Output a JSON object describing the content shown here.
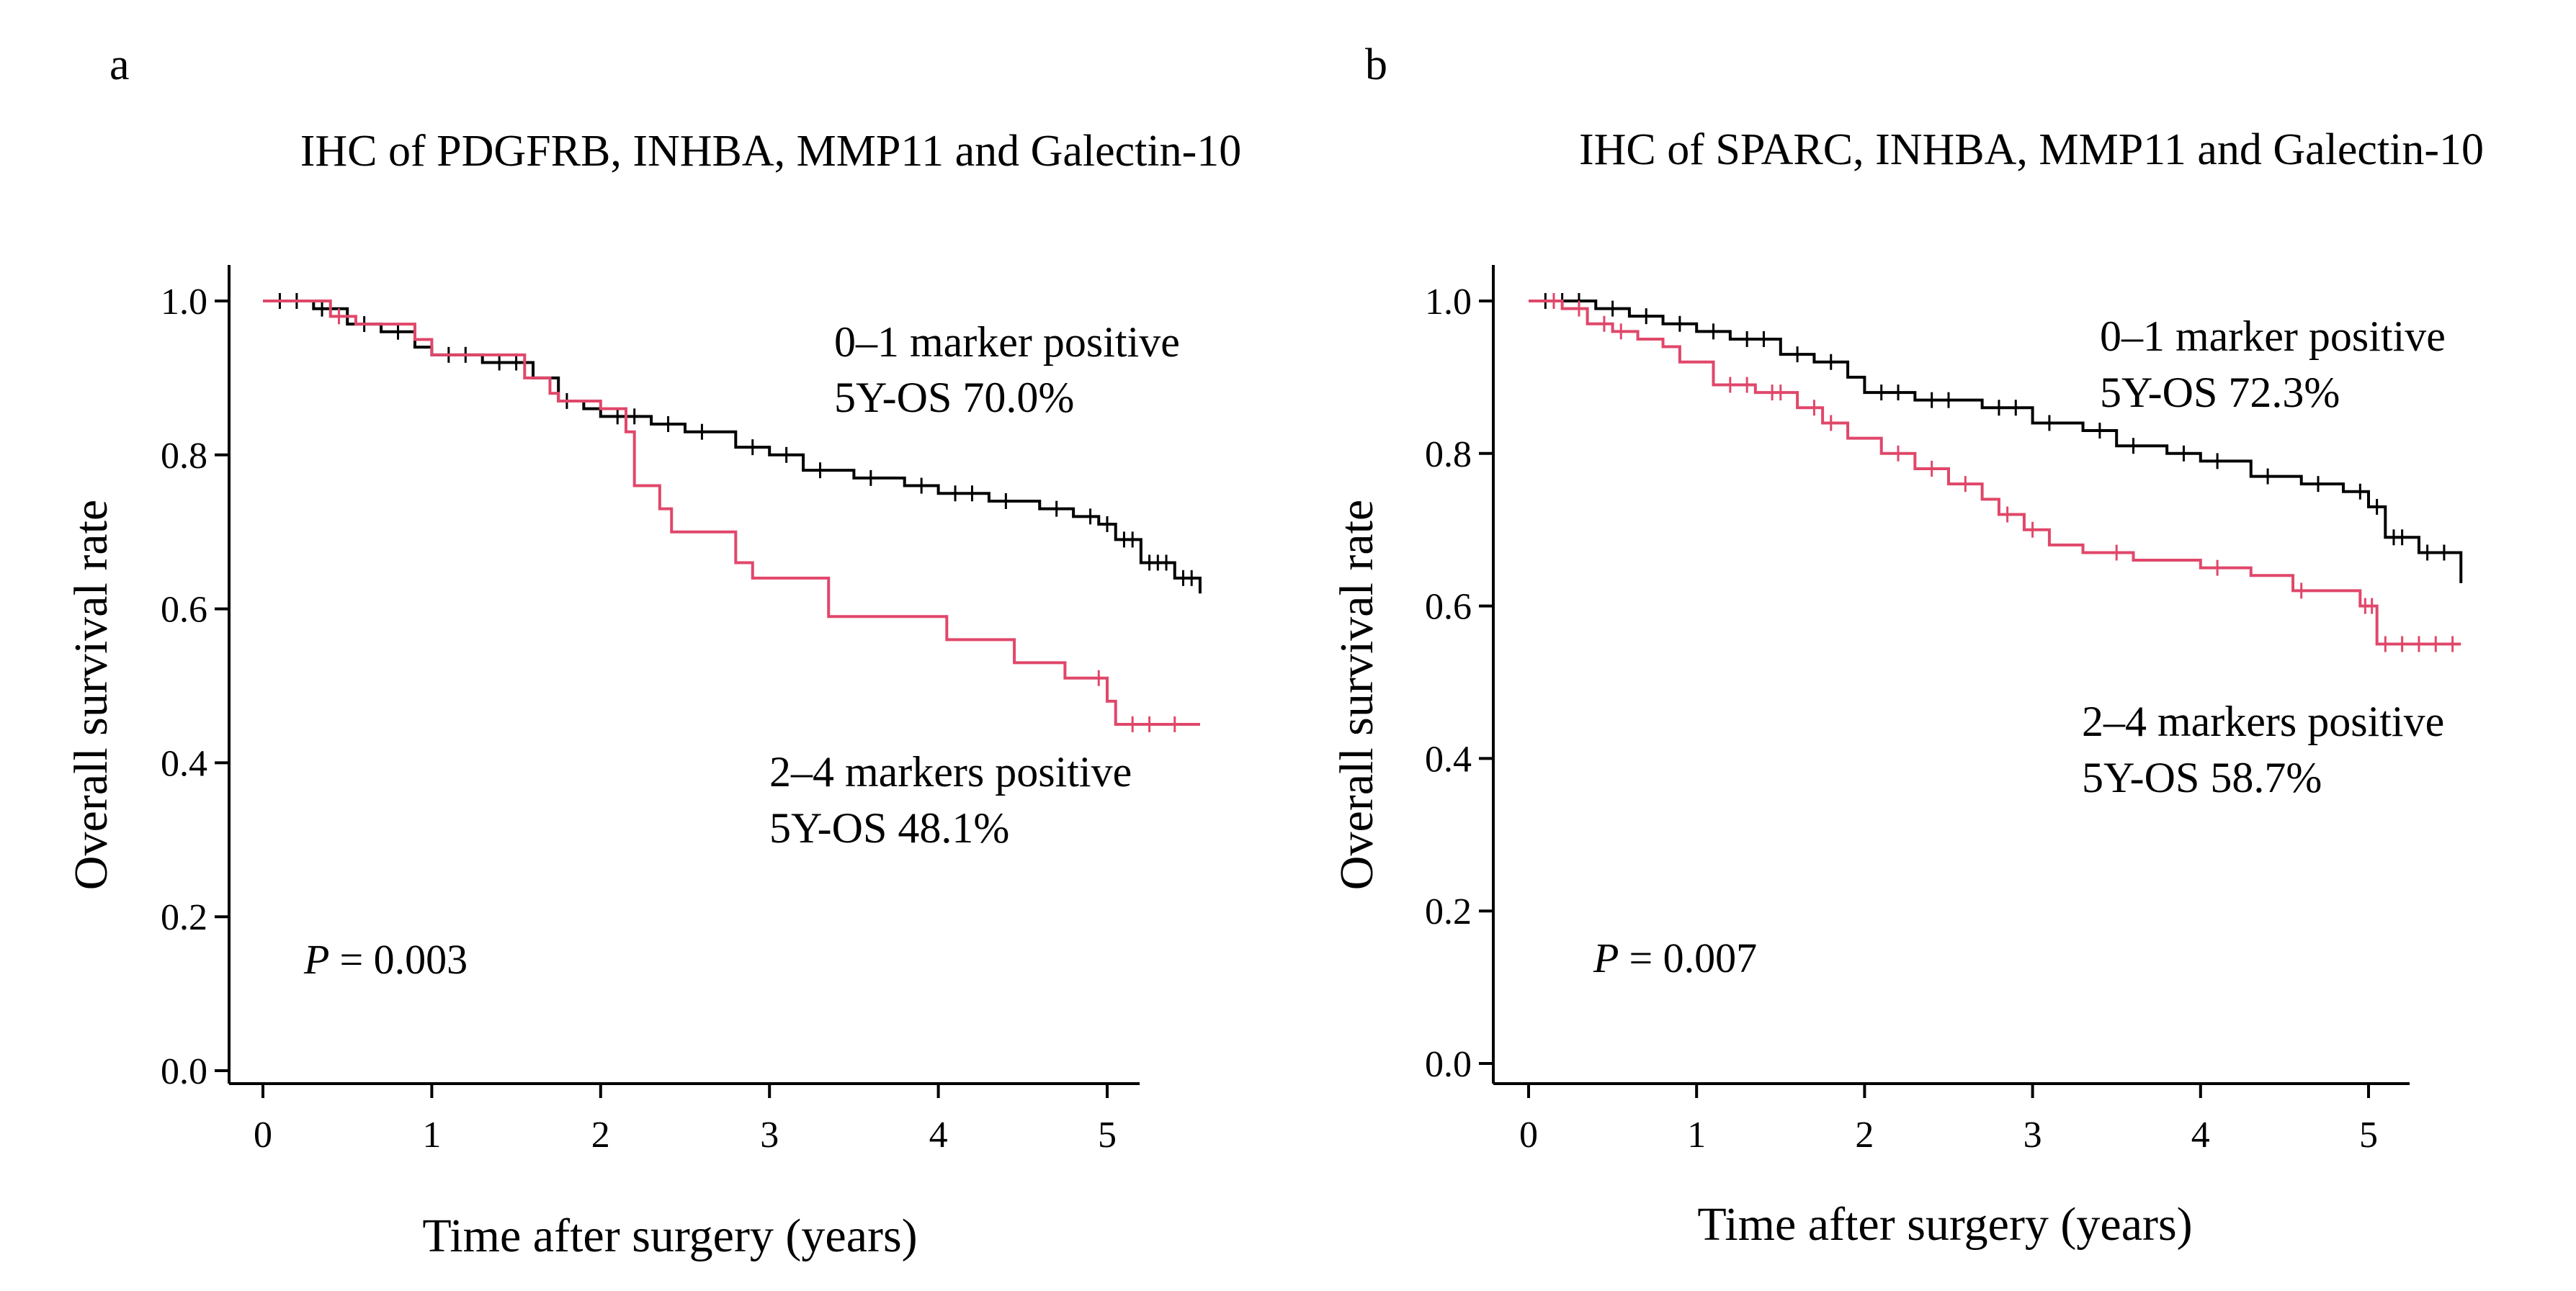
{
  "figure": {
    "panels": [
      {
        "letter": "a",
        "title": "IHC of PDGFRB, INHBA, MMP11 and Galectin-10",
        "p_label": "P",
        "p_value": "= 0.003"
      },
      {
        "letter": "b",
        "title": "IHC of SPARC, INHBA, MMP11 and Galectin-10",
        "p_label": "P",
        "p_value": "= 0.007"
      }
    ]
  },
  "chart_data": [
    {
      "type": "line",
      "subtype": "kaplan-meier",
      "title": "IHC of PDGFRB, INHBA, MMP11 and Galectin-10",
      "xlabel": "Time after surgery (years)",
      "ylabel": "Overall survival rate",
      "xlim": [
        -0.1,
        5.25
      ],
      "ylim": [
        0.0,
        1.05
      ],
      "x_ticks": [
        0,
        1,
        2,
        3,
        4,
        5
      ],
      "x_tick_labels": [
        "0",
        "1",
        "2",
        "3",
        "4",
        "5"
      ],
      "y_ticks": [
        0.0,
        0.2,
        0.4,
        0.6,
        0.8,
        1.0
      ],
      "y_tick_labels": [
        "0.0",
        "0.2",
        "0.4",
        "0.6",
        "0.8",
        "1.0"
      ],
      "grid": false,
      "series": [
        {
          "name": "0–1 marker positive",
          "annotation_line1": "0–1 marker positive",
          "annotation_line2": "5Y-OS 70.0%",
          "color": "#000000",
          "x": [
            0,
            0.3,
            0.5,
            0.7,
            0.9,
            1.0,
            1.3,
            1.6,
            1.75,
            1.9,
            2.0,
            2.3,
            2.5,
            2.8,
            3.0,
            3.2,
            3.5,
            3.8,
            4.0,
            4.3,
            4.6,
            4.8,
            4.95,
            5.05,
            5.2,
            5.4,
            5.55
          ],
          "y": [
            1.0,
            0.99,
            0.97,
            0.96,
            0.94,
            0.93,
            0.92,
            0.9,
            0.87,
            0.86,
            0.85,
            0.84,
            0.83,
            0.81,
            0.8,
            0.78,
            0.77,
            0.76,
            0.75,
            0.74,
            0.73,
            0.72,
            0.71,
            0.69,
            0.66,
            0.64,
            0.62
          ],
          "censor_x": [
            0.1,
            0.2,
            0.35,
            0.6,
            0.8,
            1.1,
            1.2,
            1.4,
            1.5,
            1.8,
            2.1,
            2.2,
            2.4,
            2.6,
            2.9,
            3.1,
            3.3,
            3.6,
            3.9,
            4.1,
            4.2,
            4.4,
            4.7,
            4.9,
            5.0,
            5.1,
            5.15,
            5.25,
            5.3,
            5.35,
            5.45,
            5.5
          ]
        },
        {
          "name": "2–4 markers positive",
          "annotation_line1": "2–4 markers  positive",
          "annotation_line2": "5Y-OS 48.1%",
          "color": "#e0476a",
          "x": [
            0,
            0.4,
            0.55,
            0.9,
            1.0,
            1.55,
            1.7,
            1.75,
            2.0,
            2.15,
            2.2,
            2.35,
            2.42,
            2.8,
            2.9,
            3.35,
            4.05,
            4.45,
            4.75,
            5.0,
            5.05,
            5.55
          ],
          "y": [
            1.0,
            0.98,
            0.97,
            0.95,
            0.93,
            0.9,
            0.88,
            0.87,
            0.86,
            0.83,
            0.76,
            0.73,
            0.7,
            0.66,
            0.64,
            0.59,
            0.56,
            0.53,
            0.51,
            0.48,
            0.45,
            0.45
          ],
          "censor_x": [
            0.45,
            4.95,
            5.15,
            5.25,
            5.4
          ]
        }
      ],
      "p_value": "P = 0.003"
    },
    {
      "type": "line",
      "subtype": "kaplan-meier",
      "title": "IHC of SPARC, INHBA, MMP11 and Galectin-10",
      "xlabel": "Time after surgery (years)",
      "ylabel": "Overall survival rate",
      "xlim": [
        -0.1,
        5.25
      ],
      "ylim": [
        0.0,
        1.05
      ],
      "x_ticks": [
        0,
        1,
        2,
        3,
        4,
        5
      ],
      "x_tick_labels": [
        "0",
        "1",
        "2",
        "3",
        "4",
        "5"
      ],
      "y_ticks": [
        0.0,
        0.2,
        0.4,
        0.6,
        0.8,
        1.0
      ],
      "y_tick_labels": [
        "0.0",
        "0.2",
        "0.4",
        "0.6",
        "0.8",
        "1.0"
      ],
      "grid": false,
      "series": [
        {
          "name": "0–1 marker positive",
          "annotation_line1": "0–1 marker positive",
          "annotation_line2": "5Y-OS 72.3%",
          "color": "#000000",
          "x": [
            0,
            0.4,
            0.6,
            0.8,
            1.0,
            1.2,
            1.5,
            1.7,
            1.9,
            2.0,
            2.3,
            2.7,
            3.0,
            3.3,
            3.5,
            3.8,
            4.0,
            4.3,
            4.6,
            4.85,
            5.0,
            5.1,
            5.3,
            5.55
          ],
          "y": [
            1.0,
            0.99,
            0.98,
            0.97,
            0.96,
            0.95,
            0.93,
            0.92,
            0.9,
            0.88,
            0.87,
            0.86,
            0.84,
            0.83,
            0.81,
            0.8,
            0.79,
            0.77,
            0.76,
            0.75,
            0.73,
            0.69,
            0.67,
            0.63
          ],
          "censor_x": [
            0.1,
            0.2,
            0.3,
            0.5,
            0.7,
            0.9,
            1.1,
            1.3,
            1.4,
            1.6,
            1.8,
            2.1,
            2.2,
            2.4,
            2.5,
            2.8,
            2.9,
            3.1,
            3.4,
            3.6,
            3.9,
            4.1,
            4.4,
            4.7,
            4.95,
            5.05,
            5.15,
            5.2,
            5.35,
            5.45
          ]
        },
        {
          "name": "2–4 markers positive",
          "annotation_line1": "2–4 markers positive",
          "annotation_line2": "5Y-OS 58.7%",
          "color": "#e0476a",
          "x": [
            0,
            0.2,
            0.35,
            0.5,
            0.65,
            0.8,
            0.9,
            1.1,
            1.35,
            1.6,
            1.75,
            1.9,
            2.1,
            2.3,
            2.5,
            2.7,
            2.8,
            2.95,
            3.1,
            3.3,
            3.6,
            4.0,
            4.3,
            4.55,
            4.95,
            5.05,
            5.55
          ],
          "y": [
            1.0,
            0.99,
            0.97,
            0.96,
            0.95,
            0.94,
            0.92,
            0.89,
            0.88,
            0.86,
            0.84,
            0.82,
            0.8,
            0.78,
            0.76,
            0.74,
            0.72,
            0.7,
            0.68,
            0.67,
            0.66,
            0.65,
            0.64,
            0.62,
            0.6,
            0.55,
            0.55
          ],
          "censor_x": [
            0.15,
            0.3,
            0.45,
            0.55,
            1.2,
            1.3,
            1.45,
            1.5,
            1.7,
            1.8,
            2.2,
            2.4,
            2.6,
            2.85,
            3.0,
            3.5,
            4.1,
            4.6,
            4.98,
            5.02,
            5.1,
            5.2,
            5.3,
            5.4,
            5.5
          ]
        }
      ],
      "p_value": "P = 0.007"
    }
  ]
}
